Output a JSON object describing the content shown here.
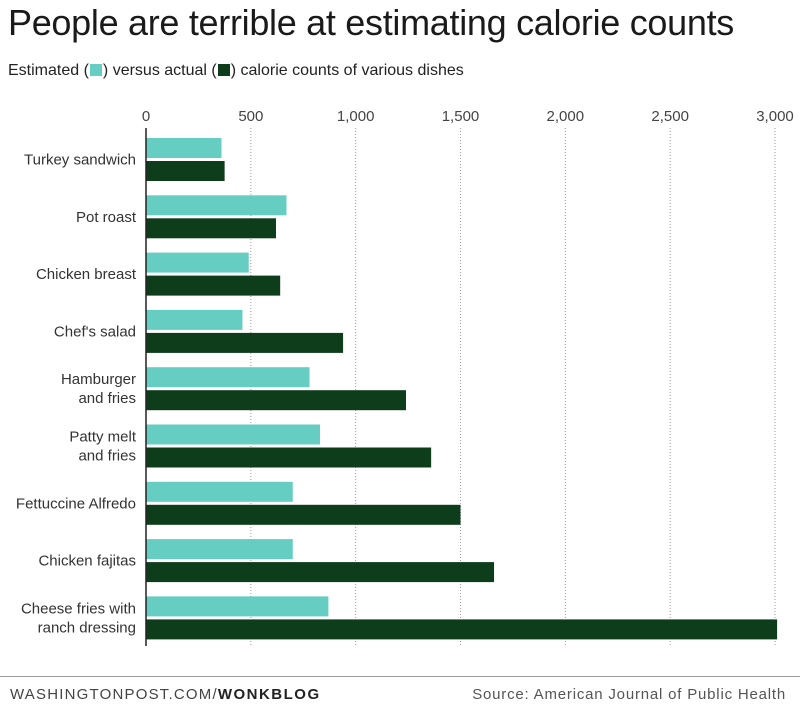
{
  "header": {
    "title": "People are terrible at estimating calorie counts",
    "subtitle_part1": "Estimated (",
    "subtitle_part2": ") versus actual (",
    "subtitle_part3": ") calorie counts of various dishes"
  },
  "footer": {
    "site": "WASHINGTONPOST.COM/",
    "blog": "WONKBLOG",
    "source": "Source: American Journal of Public Health"
  },
  "colors": {
    "estimated": "#66cdc3",
    "actual": "#0d3d1b"
  },
  "chart_data": {
    "type": "bar",
    "orientation": "horizontal",
    "title": "People are terrible at estimating calorie counts",
    "subtitle": "Estimated versus actual calorie counts of various dishes",
    "categories": [
      [
        "Turkey sandwich"
      ],
      [
        "Pot roast"
      ],
      [
        "Chicken breast"
      ],
      [
        "Chef's salad"
      ],
      [
        "Hamburger",
        "and fries"
      ],
      [
        "Patty melt",
        "and fries"
      ],
      [
        "Fettuccine Alfredo"
      ],
      [
        "Chicken fajitas"
      ],
      [
        "Cheese fries with",
        "ranch dressing"
      ]
    ],
    "series": [
      {
        "key": "estimated",
        "values": [
          360,
          670,
          490,
          460,
          780,
          830,
          700,
          700,
          870
        ]
      },
      {
        "key": "actual",
        "values": [
          375,
          620,
          640,
          940,
          1240,
          1360,
          1500,
          1660,
          3010
        ]
      }
    ],
    "xlim": [
      0,
      3000
    ],
    "ticks": [
      0,
      500,
      1000,
      1500,
      2000,
      2500,
      3000
    ],
    "tick_labels": [
      "0",
      "500",
      "1,000",
      "1,500",
      "2,000",
      "2,500",
      "3,000"
    ],
    "grid": true,
    "legend": "inline in subtitle"
  }
}
